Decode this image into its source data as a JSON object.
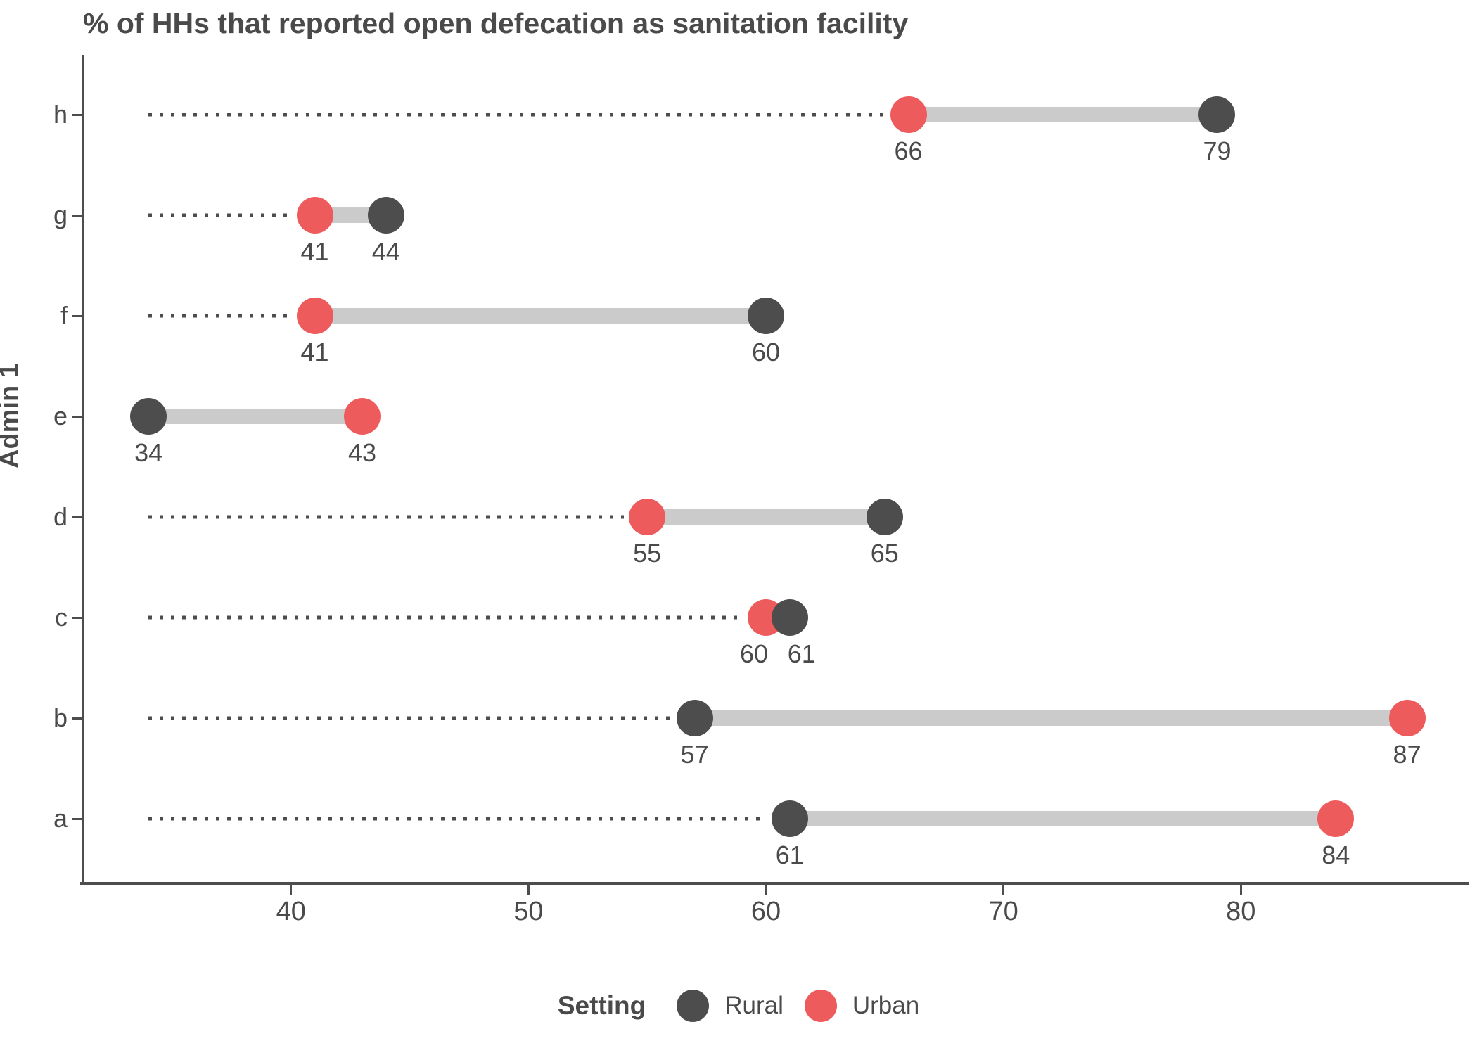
{
  "title": "% of HHs that reported open defecation as sanitation facility",
  "chart_data": {
    "type": "dumbbell",
    "orientation": "horizontal",
    "title": "% of HHs that reported open defecation as sanitation facility",
    "y_axis_label": "Admin 1",
    "categories": [
      "h",
      "g",
      "f",
      "e",
      "d",
      "c",
      "b",
      "a"
    ],
    "series": [
      {
        "name": "Rural",
        "values": [
          79,
          44,
          60,
          34,
          65,
          61,
          57,
          61
        ]
      },
      {
        "name": "Urban",
        "values": [
          66,
          41,
          41,
          43,
          55,
          60,
          87,
          84
        ]
      }
    ],
    "value_labels_shown": true,
    "x_ticks": [
      40,
      50,
      60,
      70,
      80
    ],
    "xlim": [
      31.3,
      89.5
    ],
    "leader_start_value": 34,
    "grid": "none",
    "legend": {
      "title": "Setting",
      "position": "bottom",
      "entries": [
        {
          "label": "Rural",
          "color": "#4D4D4D"
        },
        {
          "label": "Urban",
          "color": "#EE5B5C"
        }
      ]
    },
    "value_label_dx": {
      "c": {
        "Rural": 17,
        "Urban": -17
      }
    }
  },
  "colors": {
    "rural_dot": "#4D4D4D",
    "urban_dot": "#EE5B5C",
    "connector_bar": "#CBCBCB",
    "leader_dots": "#4D4D4D",
    "axis": "#4D4D4D",
    "text": "#4A4A4A"
  }
}
